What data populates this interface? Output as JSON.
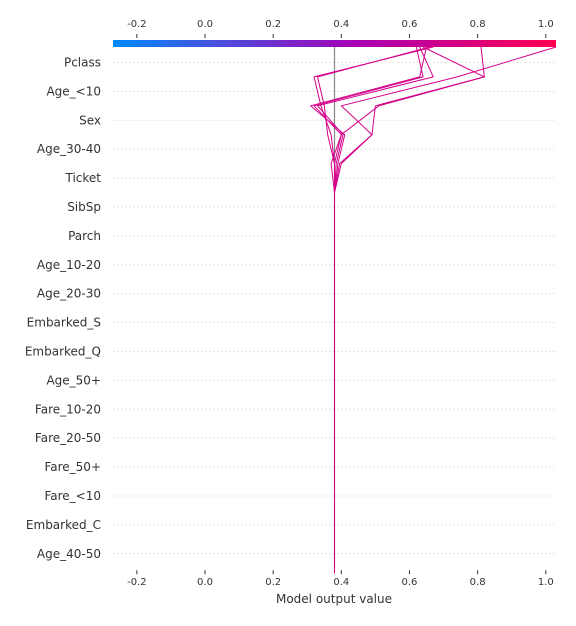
{
  "chart_data": {
    "type": "line",
    "subtype": "shap-decision-plot",
    "title": "",
    "xlabel": "Model output value",
    "ylabel": "",
    "xlim": [
      -0.27,
      1.03
    ],
    "xticks": [
      "-0.2",
      "0.0",
      "0.2",
      "0.4",
      "0.6",
      "0.8",
      "1.0"
    ],
    "xtick_values": [
      -0.2,
      0.0,
      0.2,
      0.4,
      0.6,
      0.8,
      1.0
    ],
    "base_value": 0.38,
    "features": [
      "Pclass",
      "Age_<10",
      "Sex",
      "Age_30-40",
      "Ticket",
      "SibSp",
      "Parch",
      "Age_10-20",
      "Age_20-30",
      "Embarked_S",
      "Embarked_Q",
      "Age_50+",
      "Fare_10-20",
      "Fare_20-50",
      "Fare_50+",
      "Fare_<10",
      "Embarked_C",
      "Age_40-50"
    ],
    "colorbar": {
      "range": [
        -0.27,
        1.03
      ],
      "low_color": "#008bfb",
      "high_color": "#ff0051"
    },
    "line_color": "#d4008a",
    "grid": true,
    "note_order": "Each series lists cumulative model output from the bottom feature (Age_40-50) up to the top feature (Pclass), then the final output at the top.",
    "series": [
      {
        "values": [
          0.38,
          0.38,
          0.38,
          0.38,
          0.38,
          0.38,
          0.38,
          0.38,
          0.38,
          0.38,
          0.38,
          0.38,
          0.38,
          0.38,
          0.385,
          0.405,
          0.33,
          0.67,
          0.63
        ]
      },
      {
        "values": [
          0.38,
          0.38,
          0.38,
          0.38,
          0.38,
          0.38,
          0.38,
          0.38,
          0.38,
          0.38,
          0.38,
          0.38,
          0.38,
          0.38,
          0.38,
          0.4,
          0.32,
          0.64,
          0.62
        ]
      },
      {
        "values": [
          0.38,
          0.38,
          0.38,
          0.38,
          0.38,
          0.38,
          0.38,
          0.38,
          0.38,
          0.38,
          0.38,
          0.38,
          0.38,
          0.38,
          0.39,
          0.41,
          0.31,
          0.63,
          0.65
        ]
      },
      {
        "values": [
          0.38,
          0.38,
          0.38,
          0.38,
          0.38,
          0.38,
          0.38,
          0.38,
          0.38,
          0.38,
          0.38,
          0.38,
          0.38,
          0.38,
          0.38,
          0.36,
          0.35,
          0.33,
          0.66
        ]
      },
      {
        "values": [
          0.38,
          0.38,
          0.38,
          0.38,
          0.38,
          0.38,
          0.38,
          0.38,
          0.38,
          0.38,
          0.38,
          0.38,
          0.38,
          0.38,
          0.38,
          0.37,
          0.34,
          0.32,
          0.67
        ]
      },
      {
        "values": [
          0.38,
          0.38,
          0.38,
          0.38,
          0.38,
          0.38,
          0.38,
          0.38,
          0.38,
          0.38,
          0.38,
          0.38,
          0.38,
          0.38,
          0.395,
          0.49,
          0.5,
          0.82,
          0.81
        ]
      },
      {
        "values": [
          0.38,
          0.38,
          0.38,
          0.38,
          0.38,
          0.38,
          0.38,
          0.38,
          0.38,
          0.38,
          0.38,
          0.38,
          0.38,
          0.38,
          0.4,
          0.49,
          0.4,
          0.74,
          1.03
        ]
      },
      {
        "values": [
          0.38,
          0.38,
          0.38,
          0.38,
          0.38,
          0.38,
          0.38,
          0.38,
          0.38,
          0.38,
          0.38,
          0.38,
          0.38,
          0.38,
          0.37,
          0.4,
          0.51,
          0.82,
          0.64
        ]
      }
    ]
  }
}
